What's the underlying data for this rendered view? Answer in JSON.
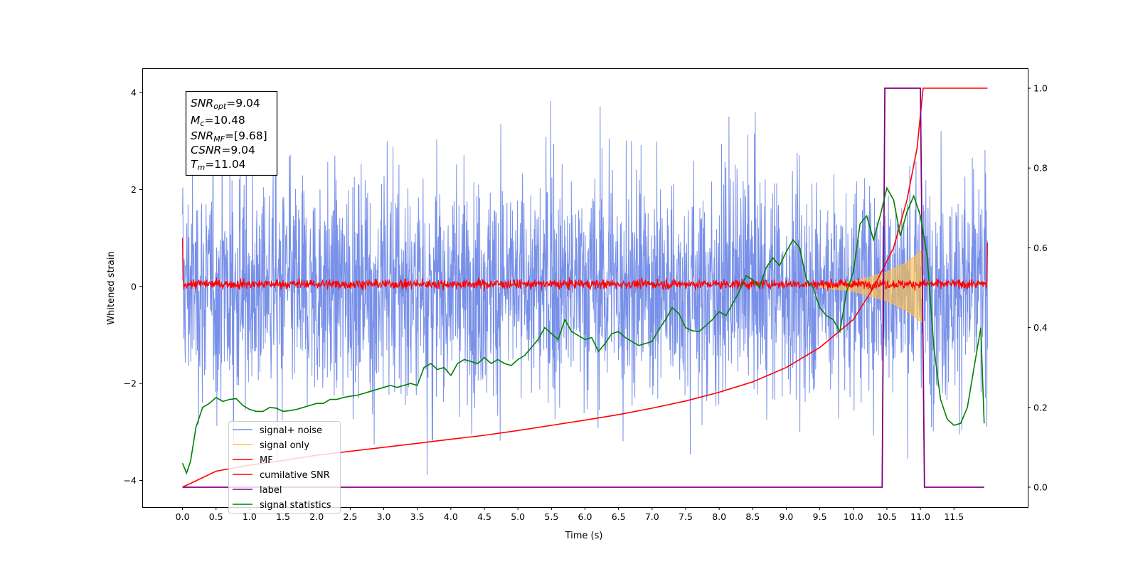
{
  "chart_data": {
    "type": "line",
    "title": "",
    "xlabel": "Time (s)",
    "ylabel": "Whitened strain",
    "y2label": "",
    "xlim": [
      -0.6,
      12.6
    ],
    "ylim": [
      -4.55,
      4.5
    ],
    "y2lim": [
      -0.05,
      1.05
    ],
    "xticks": [
      0.0,
      0.5,
      1.0,
      1.5,
      2.0,
      2.5,
      3.0,
      3.5,
      4.0,
      4.5,
      5.0,
      5.5,
      6.0,
      6.5,
      7.0,
      7.5,
      8.0,
      8.5,
      9.0,
      9.5,
      10.0,
      10.5,
      11.0,
      11.5
    ],
    "xtick_labels": [
      "0.0",
      "0.5",
      "1.0",
      "1.5",
      "2.0",
      "2.5",
      "3.0",
      "3.5",
      "4.0",
      "4.5",
      "5.0",
      "5.5",
      "6.0",
      "6.5",
      "7.0",
      "7.5",
      "8.0",
      "8.5",
      "9.0",
      "9.5",
      "10.0",
      "10.5",
      "11.0",
      "11.5"
    ],
    "yticks": [
      -4,
      -2,
      0,
      2,
      4
    ],
    "ytick_labels": [
      "−4",
      "−2",
      "0",
      "2",
      "4"
    ],
    "y2ticks": [
      0.0,
      0.2,
      0.4,
      0.6,
      0.8,
      1.0
    ],
    "y2tick_labels": [
      "0.0",
      "0.2",
      "0.4",
      "0.6",
      "0.8",
      "1.0"
    ],
    "grid": false,
    "legend_position": "lower-left",
    "colors": {
      "noise": "#7890e8",
      "signal": "#ffc04c",
      "mf": "#ff0000",
      "csnr": "#ff0000",
      "label": "#800080",
      "stats": "#008000"
    },
    "annotation": {
      "lines": [
        {
          "var": "SNR",
          "sub": "opt",
          "value": "=9.04"
        },
        {
          "var": "M",
          "sub": "c",
          "value": "=10.48"
        },
        {
          "var": "SNR",
          "sub": "MF",
          "value": "=[9.68]"
        },
        {
          "var": "CSNR",
          "sub": "",
          "value": "=9.04"
        },
        {
          "var": "T",
          "sub": "m",
          "value": "=11.04"
        }
      ]
    },
    "series": [
      {
        "name": "signal+ noise",
        "axis": "left",
        "kind": "noise",
        "x_range": [
          0.0,
          12.0
        ],
        "envelope_typical": [
          -2.2,
          2.2
        ],
        "extreme_range": [
          -4.1,
          4.05
        ]
      },
      {
        "name": "signal only",
        "axis": "left",
        "kind": "chirp",
        "x_range": [
          0.0,
          11.04
        ],
        "amplitude": [
          [
            9.5,
            0.02
          ],
          [
            10.0,
            0.1
          ],
          [
            10.5,
            0.3
          ],
          [
            10.8,
            0.5
          ],
          [
            11.0,
            0.72
          ],
          [
            11.04,
            0.75
          ]
        ]
      },
      {
        "name": "MF",
        "axis": "left",
        "kind": "mf",
        "x_range": [
          0.0,
          12.0
        ],
        "baseline": 0.05,
        "band": [
          -0.2,
          0.3
        ],
        "edge_values": [
          1.0,
          0.9
        ]
      },
      {
        "name": "cumilative SNR",
        "axis": "right",
        "x": [
          0.0,
          0.5,
          1.0,
          1.5,
          2.0,
          2.5,
          3.0,
          3.5,
          4.0,
          4.5,
          5.0,
          5.5,
          6.0,
          6.5,
          7.0,
          7.5,
          8.0,
          8.5,
          9.0,
          9.5,
          10.0,
          10.3,
          10.6,
          10.8,
          10.95,
          11.04,
          12.0
        ],
        "y": [
          0.0,
          0.04,
          0.055,
          0.067,
          0.08,
          0.09,
          0.1,
          0.11,
          0.12,
          0.13,
          0.142,
          0.155,
          0.168,
          0.182,
          0.198,
          0.216,
          0.238,
          0.264,
          0.3,
          0.35,
          0.42,
          0.5,
          0.6,
          0.72,
          0.85,
          1.0,
          1.0
        ]
      },
      {
        "name": "label",
        "axis": "right",
        "x": [
          0.0,
          10.43,
          10.47,
          11.0,
          11.06,
          11.95
        ],
        "y": [
          0.0,
          0.0,
          1.0,
          1.0,
          0.0,
          0.0
        ]
      },
      {
        "name": "signal statistics",
        "axis": "right",
        "x": [
          0.0,
          0.06,
          0.12,
          0.2,
          0.3,
          0.4,
          0.5,
          0.6,
          0.7,
          0.8,
          0.9,
          1.0,
          1.1,
          1.2,
          1.3,
          1.4,
          1.5,
          1.6,
          1.7,
          1.8,
          1.9,
          2.0,
          2.1,
          2.2,
          2.3,
          2.4,
          2.5,
          2.6,
          2.7,
          2.8,
          2.9,
          3.0,
          3.1,
          3.2,
          3.3,
          3.4,
          3.5,
          3.6,
          3.7,
          3.8,
          3.9,
          4.0,
          4.1,
          4.2,
          4.3,
          4.4,
          4.5,
          4.6,
          4.7,
          4.8,
          4.9,
          5.0,
          5.1,
          5.2,
          5.3,
          5.4,
          5.5,
          5.6,
          5.7,
          5.8,
          5.9,
          6.0,
          6.1,
          6.2,
          6.3,
          6.4,
          6.5,
          6.6,
          6.7,
          6.8,
          6.9,
          7.0,
          7.1,
          7.2,
          7.3,
          7.4,
          7.5,
          7.6,
          7.7,
          7.8,
          7.9,
          8.0,
          8.1,
          8.2,
          8.3,
          8.4,
          8.5,
          8.6,
          8.7,
          8.8,
          8.9,
          9.0,
          9.1,
          9.2,
          9.3,
          9.4,
          9.5,
          9.6,
          9.7,
          9.8,
          9.9,
          10.0,
          10.1,
          10.2,
          10.3,
          10.4,
          10.5,
          10.6,
          10.7,
          10.8,
          10.9,
          11.0,
          11.1,
          11.2,
          11.3,
          11.4,
          11.5,
          11.6,
          11.7,
          11.8,
          11.9,
          11.95
        ],
        "y": [
          0.06,
          0.035,
          0.065,
          0.15,
          0.2,
          0.21,
          0.225,
          0.215,
          0.22,
          0.222,
          0.205,
          0.195,
          0.19,
          0.19,
          0.2,
          0.198,
          0.19,
          0.192,
          0.195,
          0.2,
          0.205,
          0.21,
          0.21,
          0.22,
          0.22,
          0.225,
          0.228,
          0.23,
          0.235,
          0.24,
          0.245,
          0.25,
          0.255,
          0.25,
          0.255,
          0.26,
          0.255,
          0.3,
          0.31,
          0.295,
          0.3,
          0.28,
          0.31,
          0.32,
          0.315,
          0.31,
          0.325,
          0.31,
          0.32,
          0.31,
          0.305,
          0.32,
          0.33,
          0.35,
          0.37,
          0.4,
          0.385,
          0.37,
          0.42,
          0.39,
          0.38,
          0.37,
          0.375,
          0.34,
          0.36,
          0.385,
          0.39,
          0.375,
          0.365,
          0.355,
          0.36,
          0.365,
          0.395,
          0.42,
          0.45,
          0.435,
          0.4,
          0.392,
          0.39,
          0.405,
          0.42,
          0.44,
          0.43,
          0.46,
          0.49,
          0.53,
          0.52,
          0.5,
          0.55,
          0.575,
          0.555,
          0.59,
          0.62,
          0.6,
          0.52,
          0.5,
          0.45,
          0.43,
          0.42,
          0.39,
          0.49,
          0.54,
          0.66,
          0.68,
          0.62,
          0.68,
          0.75,
          0.72,
          0.63,
          0.69,
          0.73,
          0.68,
          0.58,
          0.35,
          0.22,
          0.17,
          0.155,
          0.16,
          0.2,
          0.3,
          0.4,
          0.16
        ]
      }
    ]
  }
}
